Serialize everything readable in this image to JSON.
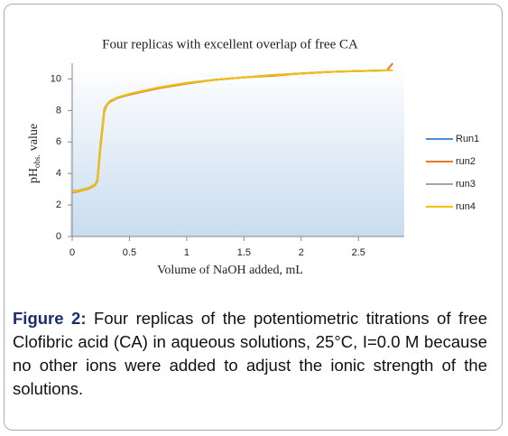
{
  "chart_data": {
    "type": "line",
    "title": "Four replicas with excellent overlap of free CA",
    "x_label": "Volume of NaOH added, mL",
    "y_label": "pH",
    "y_label_subscript": "obs.",
    "y_label_suffix": "value",
    "x": [
      0,
      0.05,
      0.1,
      0.15,
      0.2,
      0.22,
      0.25,
      0.28,
      0.3,
      0.33,
      0.4,
      0.5,
      0.75,
      1,
      1.25,
      1.5,
      1.75,
      2,
      2.25,
      2.5,
      2.75,
      2.8
    ],
    "series": [
      {
        "name": "Run1",
        "color": "#4a8fd4",
        "values": [
          2.85,
          2.9,
          3.0,
          3.1,
          3.3,
          3.6,
          6.0,
          8.0,
          8.3,
          8.6,
          8.8,
          9.05,
          9.45,
          9.75,
          9.95,
          10.1,
          10.25,
          10.35,
          10.45,
          10.5,
          10.55,
          null
        ]
      },
      {
        "name": "run2",
        "color": "#e8772a",
        "values": [
          2.8,
          2.85,
          2.95,
          3.05,
          3.25,
          3.5,
          5.8,
          7.9,
          8.3,
          8.55,
          8.8,
          9.0,
          9.4,
          9.7,
          9.95,
          10.1,
          10.2,
          10.35,
          10.45,
          10.5,
          10.55,
          11.0
        ]
      },
      {
        "name": "run3",
        "color": "#a5a5a5",
        "values": [
          2.9,
          2.9,
          3.0,
          3.1,
          3.3,
          3.6,
          6.1,
          8.1,
          8.35,
          8.6,
          8.8,
          9.05,
          9.45,
          9.75,
          9.95,
          10.1,
          10.25,
          10.35,
          10.45,
          10.5,
          10.55,
          null
        ]
      },
      {
        "name": "run4",
        "color": "#f5c000",
        "values": [
          2.85,
          2.88,
          2.98,
          3.08,
          3.28,
          3.55,
          5.9,
          8.0,
          8.3,
          8.6,
          8.85,
          9.05,
          9.45,
          9.75,
          9.95,
          10.1,
          10.25,
          10.35,
          10.45,
          10.5,
          10.55,
          10.55
        ]
      }
    ],
    "xlim": [
      0,
      2.9
    ],
    "ylim": [
      0,
      11
    ],
    "xticks": [
      0,
      0.5,
      1,
      1.5,
      2,
      2.5
    ],
    "yticks": [
      0,
      2,
      4,
      6,
      8,
      10
    ],
    "grid": false,
    "legend": "right"
  },
  "caption": {
    "label": "Figure 2:",
    "text": "Four replicas of the potentiometric titrations of free Clofibric acid (CA) in aqueous solutions, 25°C, I=0.0 M because no other ions were added to adjust the ionic strength of the solutions."
  }
}
